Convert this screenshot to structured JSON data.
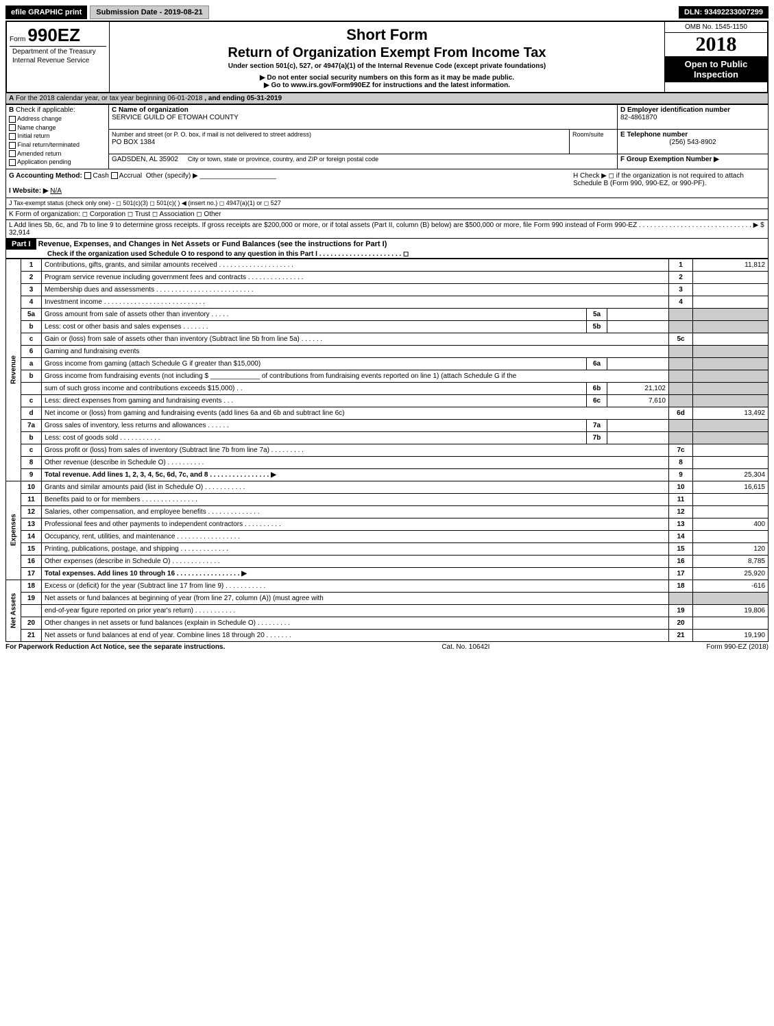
{
  "top": {
    "efile_btn": "efile GRAPHIC print",
    "submission_btn": "Submission Date - 2019-08-21",
    "dln": "DLN: 93492233007299"
  },
  "header": {
    "form_prefix": "Form",
    "form_number": "990EZ",
    "title1": "Short Form",
    "title2": "Return of Organization Exempt From Income Tax",
    "subtitle": "Under section 501(c), 527, or 4947(a)(1) of the Internal Revenue Code (except private foundations)",
    "note1": "▶ Do not enter social security numbers on this form as it may be made public.",
    "note2": "▶ Go to www.irs.gov/Form990EZ for instructions and the latest information.",
    "dept1": "Department of the Treasury",
    "dept2": "Internal Revenue Service",
    "omb": "OMB No. 1545-1150",
    "year": "2018",
    "open_public": "Open to Public Inspection"
  },
  "sectionA": {
    "label": "A",
    "text": "For the 2018 calendar year, or tax year beginning 06-01-2018",
    "ending": ", and ending 05-31-2019"
  },
  "sectionB": {
    "label": "B",
    "title": "Check if applicable:",
    "opts": [
      "Address change",
      "Name change",
      "Initial return",
      "Final return/terminated",
      "Amended return",
      "Application pending"
    ]
  },
  "sectionC": {
    "name_label": "C Name of organization",
    "name": "SERVICE GUILD OF ETOWAH COUNTY",
    "addr_label": "Number and street (or P. O. box, if mail is not delivered to street address)",
    "addr": "PO BOX 1384",
    "room_label": "Room/suite",
    "city_label": "City or town, state or province, country, and ZIP or foreign postal code",
    "city": "GADSDEN, AL  35902"
  },
  "sectionD": {
    "label": "D Employer identification number",
    "value": "82-4861870"
  },
  "sectionE": {
    "label": "E Telephone number",
    "value": "(256) 543-8902"
  },
  "sectionF": {
    "label": "F Group Exemption Number ▶"
  },
  "sectionG": {
    "label": "G Accounting Method:",
    "opts": [
      "Cash",
      "Accrual"
    ],
    "other": "Other (specify) ▶"
  },
  "sectionH": {
    "text": "H  Check ▶ ◻ if the organization is not required to attach Schedule B (Form 990, 990-EZ, or 990-PF)."
  },
  "sectionI": {
    "label": "I Website: ▶",
    "value": "N/A"
  },
  "sectionJ": {
    "text": "J Tax-exempt status (check only one) - ◻ 501(c)(3) ◻ 501(c)(  ) ◀ (insert no.) ◻ 4947(a)(1) or ◻ 527"
  },
  "sectionK": {
    "text": "K Form of organization: ◻ Corporation  ◻ Trust  ◻ Association  ◻ Other"
  },
  "sectionL": {
    "text": "L Add lines 5b, 6c, and 7b to line 9 to determine gross receipts. If gross receipts are $200,000 or more, or if total assets (Part II, column (B) below) are $500,000 or more, file Form 990 instead of Form 990-EZ . . . . . . . . . . . . . . . . . . . . . . . . . . . . . . ▶ $ 32,914"
  },
  "part1": {
    "label": "Part I",
    "title": "Revenue, Expenses, and Changes in Net Assets or Fund Balances (see the instructions for Part I)",
    "sub": "Check if the organization used Schedule O to respond to any question in this Part I . . . . . . . . . . . . . . . . . . . . . . ◻"
  },
  "vlabels": {
    "revenue": "Revenue",
    "expenses": "Expenses",
    "netassets": "Net Assets"
  },
  "lines": [
    {
      "n": "1",
      "t": "Contributions, gifts, grants, and similar amounts received . . . . . . . . . . . . . . . . . . . .",
      "box": "1",
      "v": "11,812",
      "sec": "rev"
    },
    {
      "n": "2",
      "t": "Program service revenue including government fees and contracts . . . . . . . . . . . . . . .",
      "box": "2",
      "v": "",
      "sec": "rev"
    },
    {
      "n": "3",
      "t": "Membership dues and assessments . . . . . . . . . . . . . . . . . . . . . . . . . .",
      "box": "3",
      "v": "",
      "sec": "rev"
    },
    {
      "n": "4",
      "t": "Investment income . . . . . . . . . . . . . . . . . . . . . . . . . . .",
      "box": "4",
      "v": "",
      "sec": "rev"
    },
    {
      "n": "5a",
      "t": "Gross amount from sale of assets other than inventory . . . . .",
      "ibox": "5a",
      "iv": "",
      "sec": "rev",
      "shade": true
    },
    {
      "n": "b",
      "t": "Less: cost or other basis and sales expenses . . . . . . .",
      "ibox": "5b",
      "iv": "",
      "sec": "rev",
      "shade": true
    },
    {
      "n": "c",
      "t": "Gain or (loss) from sale of assets other than inventory (Subtract line 5b from line 5a)      . . . . . .",
      "box": "5c",
      "v": "",
      "sec": "rev"
    },
    {
      "n": "6",
      "t": "Gaming and fundraising events",
      "sec": "rev",
      "shade": true,
      "noval": true
    },
    {
      "n": "a",
      "t": "Gross income from gaming (attach Schedule G if greater than $15,000)",
      "ibox": "6a",
      "iv": "",
      "sec": "rev",
      "shade": true
    },
    {
      "n": "b",
      "t": "Gross income from fundraising events (not including $ _____________ of contributions from fundraising events reported on line 1) (attach Schedule G if the",
      "sec": "rev",
      "shade": true,
      "noval": true
    },
    {
      "n": "",
      "t": "sum of such gross income and contributions exceeds $15,000)       . .",
      "ibox": "6b",
      "iv": "21,102",
      "sec": "rev",
      "shade": true
    },
    {
      "n": "c",
      "t": "Less: direct expenses from gaming and fundraising events       . . .",
      "ibox": "6c",
      "iv": "7,610",
      "sec": "rev",
      "shade": true
    },
    {
      "n": "d",
      "t": "Net income or (loss) from gaming and fundraising events (add lines 6a and 6b and subtract line 6c)",
      "box": "6d",
      "v": "13,492",
      "sec": "rev"
    },
    {
      "n": "7a",
      "t": "Gross sales of inventory, less returns and allowances       . . . . . .",
      "ibox": "7a",
      "iv": "",
      "sec": "rev",
      "shade": true
    },
    {
      "n": "b",
      "t": "Less: cost of goods sold                  . . . . . . . . . . .",
      "ibox": "7b",
      "iv": "",
      "sec": "rev",
      "shade": true
    },
    {
      "n": "c",
      "t": "Gross profit or (loss) from sales of inventory (Subtract line 7b from line 7a)       . . . . . . . . .",
      "box": "7c",
      "v": "",
      "sec": "rev"
    },
    {
      "n": "8",
      "t": "Other revenue (describe in Schedule O)                     . . . . . . . . . .",
      "box": "8",
      "v": "",
      "sec": "rev"
    },
    {
      "n": "9",
      "t": "Total revenue. Add lines 1, 2, 3, 4, 5c, 6d, 7c, and 8       . . . . . . . . . . . . . . . . ▶",
      "box": "9",
      "v": "25,304",
      "sec": "rev",
      "bold": true
    },
    {
      "n": "10",
      "t": "Grants and similar amounts paid (list in Schedule O)            . . . . . . . . . . .",
      "box": "10",
      "v": "16,615",
      "sec": "exp"
    },
    {
      "n": "11",
      "t": "Benefits paid to or for members            . . . . . . . . . . . . . . .",
      "box": "11",
      "v": "",
      "sec": "exp"
    },
    {
      "n": "12",
      "t": "Salaries, other compensation, and employee benefits      . . . . . . . . . . . . . .",
      "box": "12",
      "v": "",
      "sec": "exp"
    },
    {
      "n": "13",
      "t": "Professional fees and other payments to independent contractors      . . . . . . . . . .",
      "box": "13",
      "v": "400",
      "sec": "exp"
    },
    {
      "n": "14",
      "t": "Occupancy, rent, utilities, and maintenance      . . . . . . . . . . . . . . . . .",
      "box": "14",
      "v": "",
      "sec": "exp"
    },
    {
      "n": "15",
      "t": "Printing, publications, postage, and shipping           . . . . . . . . . . . . .",
      "box": "15",
      "v": "120",
      "sec": "exp"
    },
    {
      "n": "16",
      "t": "Other expenses (describe in Schedule O)                . . . . . . . . . . . . .",
      "box": "16",
      "v": "8,785",
      "sec": "exp"
    },
    {
      "n": "17",
      "t": "Total expenses. Add lines 10 through 16           . . . . . . . . . . . . . . . . . ▶",
      "box": "17",
      "v": "25,920",
      "sec": "exp",
      "bold": true
    },
    {
      "n": "18",
      "t": "Excess or (deficit) for the year (Subtract line 17 from line 9)         . . . . . . . . . . .",
      "box": "18",
      "v": "-616",
      "sec": "net"
    },
    {
      "n": "19",
      "t": "Net assets or fund balances at beginning of year (from line 27, column (A)) (must agree with",
      "sec": "net",
      "shade": true,
      "noval": true
    },
    {
      "n": "",
      "t": "end-of-year figure reported on prior year's return)           . . . . . . . . . . .",
      "box": "19",
      "v": "19,806",
      "sec": "net"
    },
    {
      "n": "20",
      "t": "Other changes in net assets or fund balances (explain in Schedule O)       . . . . . . . . .",
      "box": "20",
      "v": "",
      "sec": "net"
    },
    {
      "n": "21",
      "t": "Net assets or fund balances at end of year. Combine lines 18 through 20          . . . . . . .",
      "box": "21",
      "v": "19,190",
      "sec": "net"
    }
  ],
  "footer": {
    "left": "For Paperwork Reduction Act Notice, see the separate instructions.",
    "mid": "Cat. No. 10642I",
    "right": "Form 990-EZ (2018)"
  },
  "colors": {
    "black": "#000000",
    "white": "#ffffff",
    "gray_btn": "#cccccc",
    "shade": "#cccccc",
    "link": "#0000cc"
  }
}
